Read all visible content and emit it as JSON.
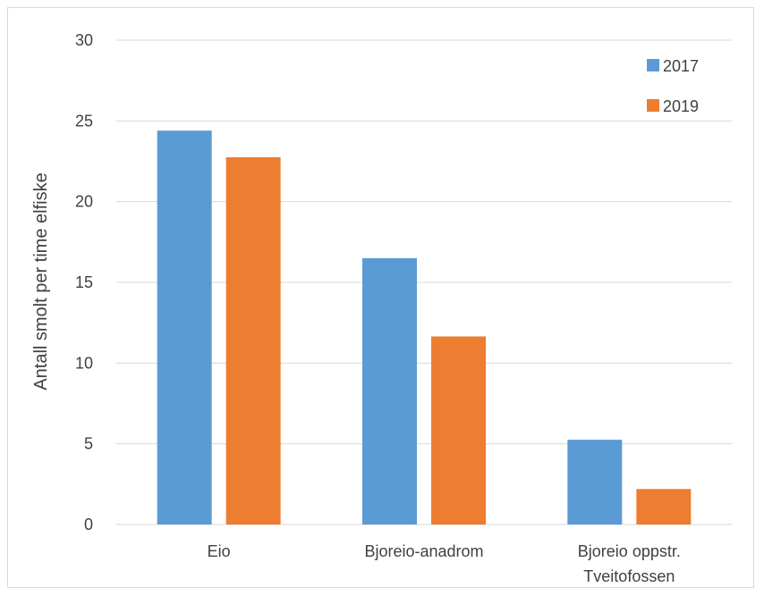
{
  "chart_data": {
    "type": "bar",
    "categories": [
      [
        "Eio"
      ],
      [
        "Bjoreio-anadrom"
      ],
      [
        "Bjoreio oppstr.",
        "Tveitofossen"
      ]
    ],
    "series": [
      {
        "name": "2017",
        "values": [
          24.4,
          16.5,
          5.25
        ],
        "color": "#5b9bd5"
      },
      {
        "name": "2019",
        "values": [
          22.75,
          11.65,
          2.2
        ],
        "color": "#ed7d31"
      }
    ],
    "ylabel": "Antall smolt per time elfiske",
    "ylim": [
      0,
      30
    ],
    "yticks": [
      0,
      5,
      10,
      15,
      20,
      25,
      30
    ],
    "grid": true,
    "legend_position": "top-right",
    "colors": {
      "grid": "#d9d9d9",
      "text": "#404040",
      "border": "#d9d9d9"
    }
  }
}
